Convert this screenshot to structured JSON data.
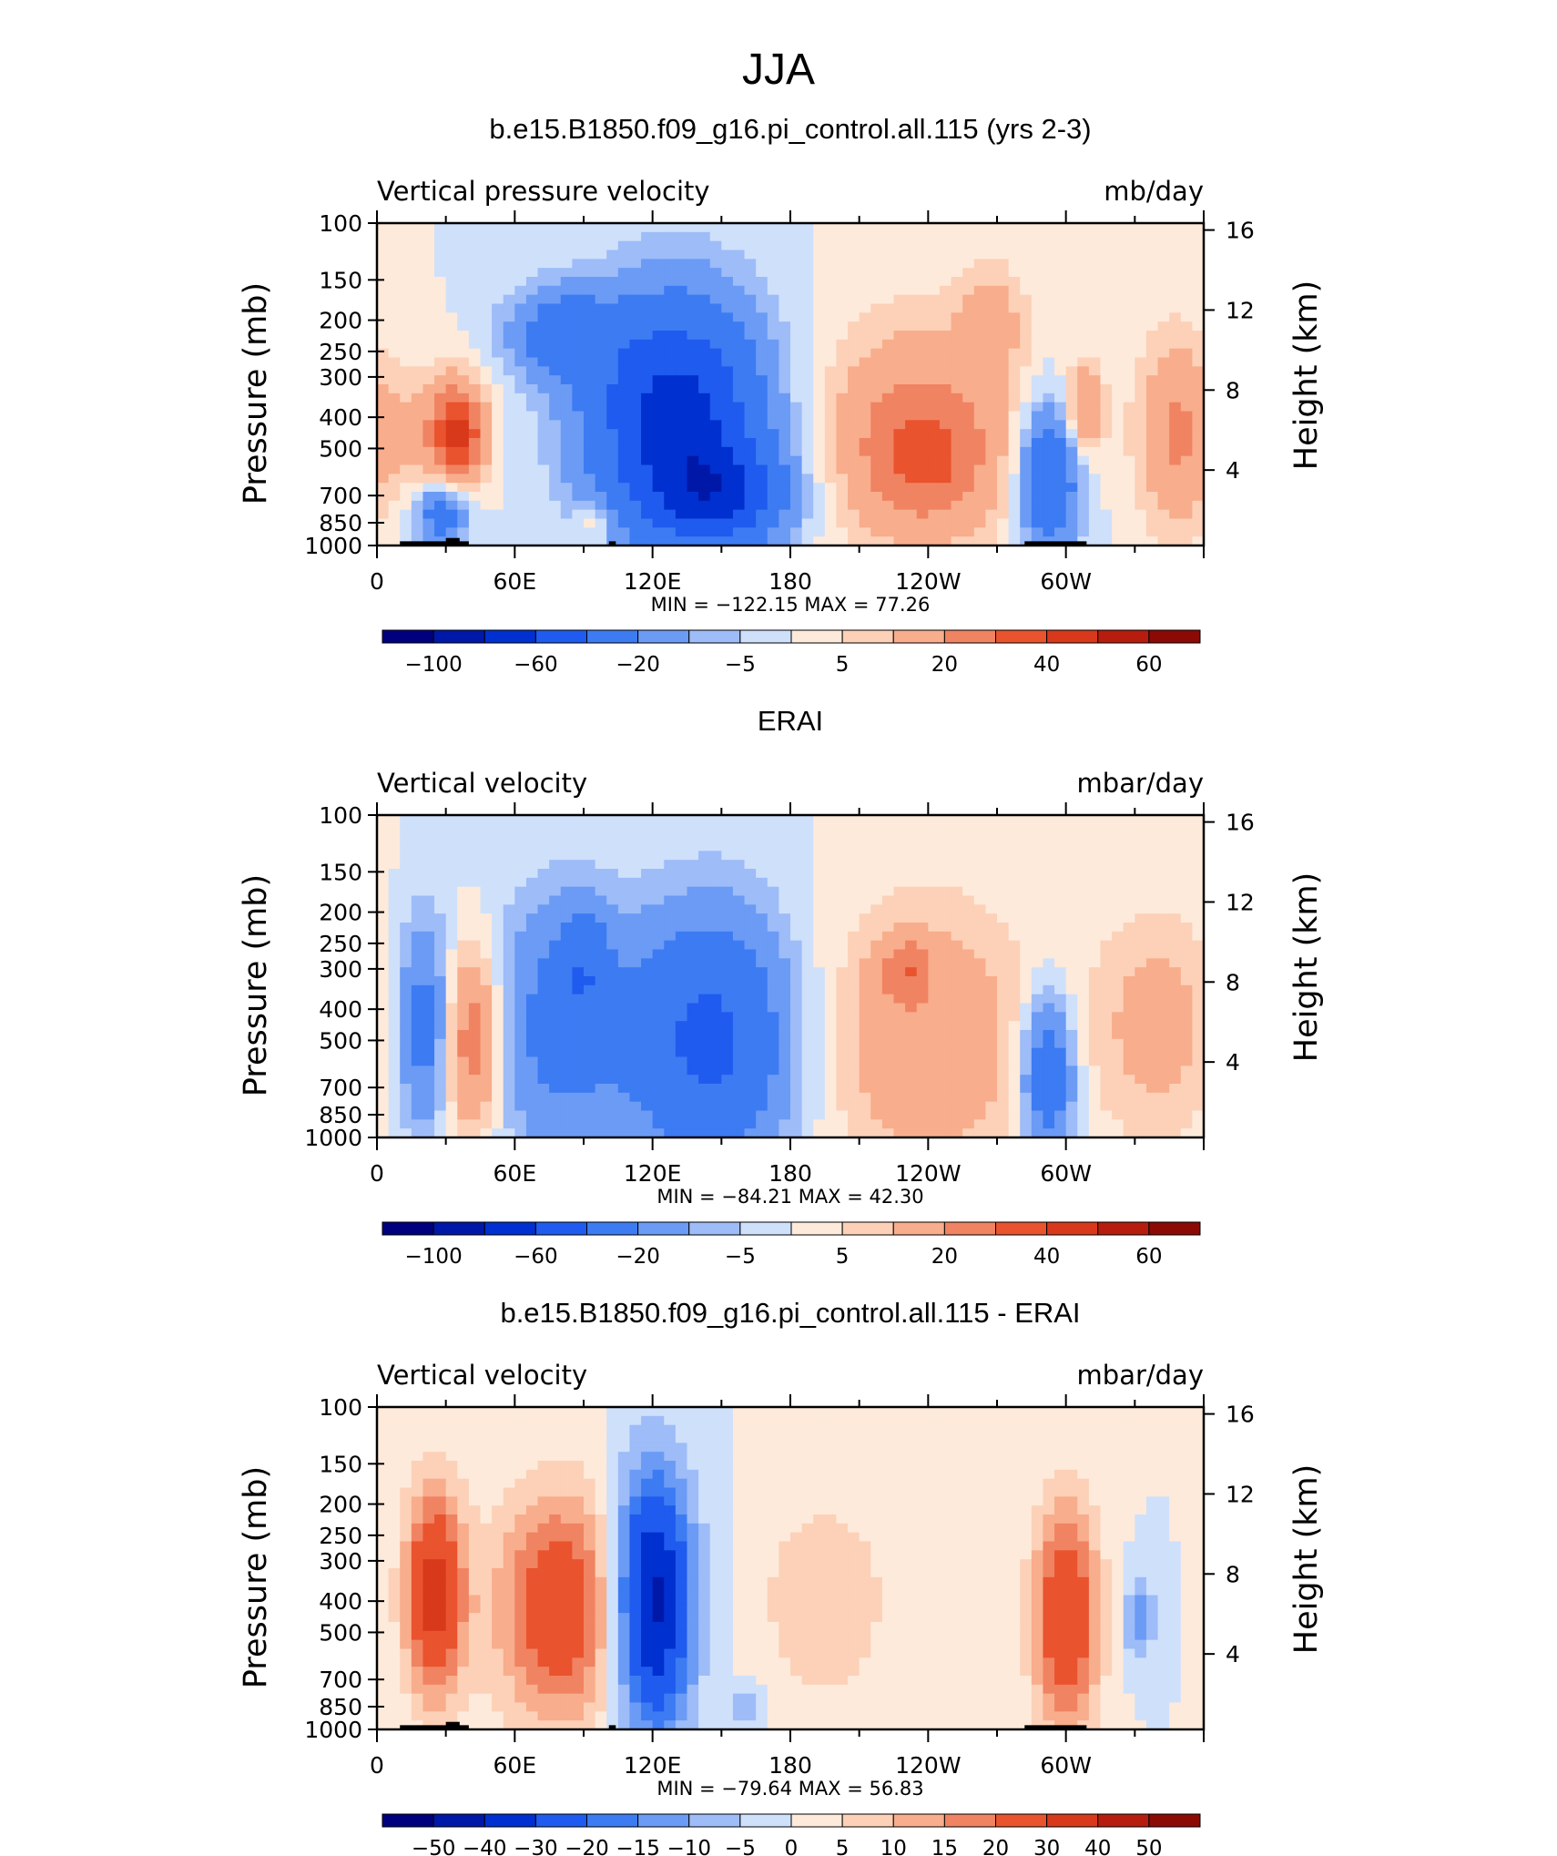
{
  "page_title": "JJA",
  "chart_data": [
    {
      "type": "heatmap",
      "title": "b.e15.B1850.f09_g16.pi_control.all.115 (yrs 2-3)",
      "left_label": "Vertical pressure velocity",
      "right_label": "mb/day",
      "ylabel": "Pressure (mb)",
      "ylabel_right": "Height (km)",
      "x_ticks": [
        "0",
        "60E",
        "120E",
        "180",
        "120W",
        "60W"
      ],
      "x_range_deg": [
        0,
        360
      ],
      "y_ticks": [
        "100",
        "150",
        "200",
        "250",
        "300",
        "400",
        "500",
        "700",
        "850",
        "1000"
      ],
      "y_range_mb": [
        100,
        1000
      ],
      "height_ticks": [
        "16",
        "12",
        "8",
        "4"
      ],
      "min_label": "MIN =",
      "min": "−122.15",
      "max_label": "MAX =",
      "max": "77.26",
      "colorbar_labels": [
        "−100",
        "−60",
        "−20",
        "−5",
        "5",
        "20",
        "40",
        "60"
      ],
      "blobs": [
        {
          "lon": 20,
          "p": 450,
          "w": 12,
          "h": 0.28,
          "v": 12
        },
        {
          "lon": 36,
          "p": 450,
          "w": 8,
          "h": 0.22,
          "v": 40
        },
        {
          "lon": 28,
          "p": 800,
          "w": 8,
          "h": 0.14,
          "v": -30
        },
        {
          "lon": 80,
          "p": 220,
          "w": 16,
          "h": 0.2,
          "v": -28
        },
        {
          "lon": 130,
          "p": 400,
          "w": 26,
          "h": 0.5,
          "v": -70
        },
        {
          "lon": 150,
          "p": 700,
          "w": 20,
          "h": 0.22,
          "v": -45
        },
        {
          "lon": 95,
          "p": 850,
          "w": 6,
          "h": 0.1,
          "v": 12
        },
        {
          "lon": 235,
          "p": 450,
          "w": 30,
          "h": 0.5,
          "v": 22
        },
        {
          "lon": 240,
          "p": 550,
          "w": 18,
          "h": 0.26,
          "v": 15
        },
        {
          "lon": 268,
          "p": 200,
          "w": 10,
          "h": 0.25,
          "v": 12
        },
        {
          "lon": 293,
          "p": 620,
          "w": 9,
          "h": 0.32,
          "v": -40
        },
        {
          "lon": 308,
          "p": 380,
          "w": 6,
          "h": 0.2,
          "v": 22
        },
        {
          "lon": 348,
          "p": 450,
          "w": 12,
          "h": 0.42,
          "v": 22
        }
      ]
    },
    {
      "type": "heatmap",
      "title": "ERAI",
      "left_label": "Vertical velocity",
      "right_label": "mbar/day",
      "ylabel": "Pressure (mb)",
      "ylabel_right": "Height (km)",
      "x_ticks": [
        "0",
        "60E",
        "120E",
        "180",
        "120W",
        "60W"
      ],
      "x_range_deg": [
        0,
        360
      ],
      "y_ticks": [
        "100",
        "150",
        "200",
        "250",
        "300",
        "400",
        "500",
        "700",
        "850",
        "1000"
      ],
      "y_range_mb": [
        100,
        1000
      ],
      "height_ticks": [
        "16",
        "12",
        "8",
        "4"
      ],
      "min_label": "MIN =",
      "min": "−84.21",
      "max_label": "MAX =",
      "max": "42.30",
      "colorbar_labels": [
        "−100",
        "−60",
        "−20",
        "−5",
        "5",
        "20",
        "40",
        "60"
      ],
      "blobs": [
        {
          "lon": 20,
          "p": 450,
          "w": 8,
          "h": 0.45,
          "v": -28
        },
        {
          "lon": 42,
          "p": 500,
          "w": 9,
          "h": 0.4,
          "v": 30
        },
        {
          "lon": 80,
          "p": 450,
          "w": 22,
          "h": 0.55,
          "v": -25
        },
        {
          "lon": 90,
          "p": 300,
          "w": 8,
          "h": 0.25,
          "v": -20
        },
        {
          "lon": 145,
          "p": 500,
          "w": 24,
          "h": 0.55,
          "v": -45
        },
        {
          "lon": 240,
          "p": 500,
          "w": 32,
          "h": 0.6,
          "v": 18
        },
        {
          "lon": 230,
          "p": 300,
          "w": 8,
          "h": 0.14,
          "v": 18
        },
        {
          "lon": 292,
          "p": 650,
          "w": 8,
          "h": 0.35,
          "v": -35
        },
        {
          "lon": 340,
          "p": 450,
          "w": 20,
          "h": 0.5,
          "v": 14
        }
      ]
    },
    {
      "type": "heatmap",
      "title": "b.e15.B1850.f09_g16.pi_control.all.115 - ERAI",
      "left_label": "Vertical velocity",
      "right_label": "mbar/day",
      "ylabel": "Pressure (mb)",
      "ylabel_right": "Height (km)",
      "x_ticks": [
        "0",
        "60E",
        "120E",
        "180",
        "120W",
        "60W"
      ],
      "x_range_deg": [
        0,
        360
      ],
      "y_ticks": [
        "100",
        "150",
        "200",
        "250",
        "300",
        "400",
        "500",
        "700",
        "850",
        "1000"
      ],
      "y_range_mb": [
        100,
        1000
      ],
      "height_ticks": [
        "16",
        "12",
        "8",
        "4"
      ],
      "min_label": "MIN =",
      "min": "−79.64",
      "max_label": "MAX =",
      "max": "56.83",
      "colorbar_labels": [
        "−50",
        "−40",
        "−30",
        "−20",
        "−15",
        "−10",
        "−5",
        "0",
        "5",
        "10",
        "15",
        "20",
        "30",
        "40",
        "50"
      ],
      "blobs": [
        {
          "lon": 25,
          "p": 380,
          "w": 9,
          "h": 0.45,
          "v": 35
        },
        {
          "lon": 80,
          "p": 420,
          "w": 20,
          "h": 0.5,
          "v": 28
        },
        {
          "lon": 120,
          "p": 400,
          "w": 12,
          "h": 0.55,
          "v": -45
        },
        {
          "lon": 195,
          "p": 400,
          "w": 20,
          "h": 0.45,
          "v": 10
        },
        {
          "lon": 300,
          "p": 450,
          "w": 10,
          "h": 0.5,
          "v": 30
        },
        {
          "lon": 332,
          "p": 450,
          "w": 5,
          "h": 0.2,
          "v": -12
        },
        {
          "lon": 160,
          "p": 850,
          "w": 6,
          "h": 0.1,
          "v": -10
        }
      ]
    }
  ]
}
